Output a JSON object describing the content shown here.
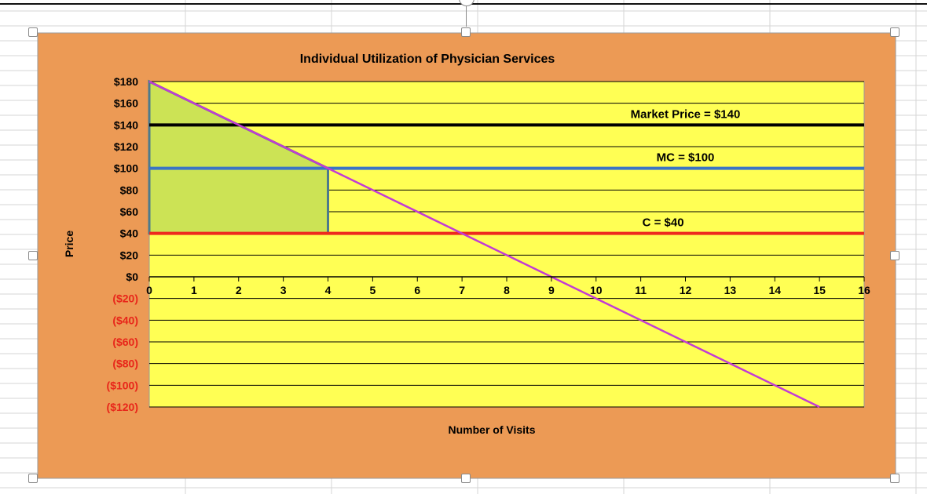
{
  "chart_data": {
    "type": "line",
    "title": "Individual Utilization of Physician Services",
    "xlabel": "Number of Visits",
    "ylabel": "Price",
    "xlim": [
      0,
      16
    ],
    "ylim": [
      -120,
      180
    ],
    "x_ticks": [
      0,
      1,
      2,
      3,
      4,
      5,
      6,
      7,
      8,
      9,
      10,
      11,
      12,
      13,
      14,
      15,
      16
    ],
    "y_ticks": [
      180,
      160,
      140,
      120,
      100,
      80,
      60,
      40,
      20,
      0,
      -20,
      -40,
      -60,
      -80,
      -100,
      -120
    ],
    "y_tick_labels": [
      "$180",
      "$160",
      "$140",
      "$120",
      "$100",
      "$80",
      "$60",
      "$40",
      "$20",
      "$0",
      "($20)",
      "($40)",
      "($60)",
      "($80)",
      "($100)",
      "($120)"
    ],
    "grid": true,
    "demand_curve": {
      "x": [
        0,
        15
      ],
      "y": [
        180,
        -120
      ],
      "color": "#c23bd4"
    },
    "horizontal_lines": [
      {
        "label": "Market Price = $140",
        "y": 140,
        "color": "#000000",
        "label_x": 12
      },
      {
        "label": "MC = $100",
        "y": 100,
        "color": "#3a74c4",
        "label_x": 12
      },
      {
        "label": "C = $40",
        "y": 40,
        "color": "#ee2a1e",
        "label_x": 11.5
      }
    ],
    "shaded_region": {
      "points": [
        [
          0,
          180
        ],
        [
          4,
          100
        ],
        [
          4,
          40
        ],
        [
          0,
          40
        ]
      ],
      "fill": "#cce355",
      "stroke": "#4d7a8c"
    },
    "colors": {
      "chart_background": "#ec9a55",
      "plot_background": "#ffff54",
      "positive_tick_label": "#000000",
      "negative_tick_label": "#e8261a"
    }
  }
}
